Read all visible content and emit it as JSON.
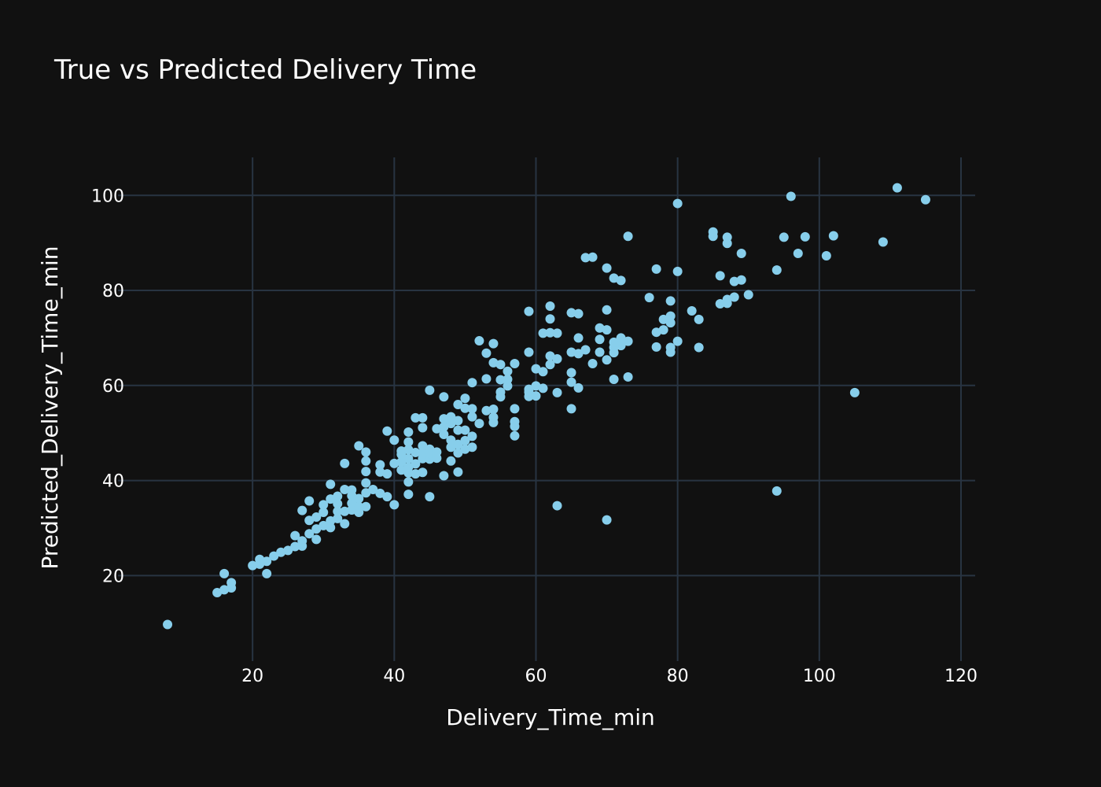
{
  "chart_data": {
    "type": "scatter",
    "title": "True vs Predicted Delivery Time",
    "xlabel": "Delivery_Time_min",
    "ylabel": "Predicted_Delivery_Time_min",
    "xlim": [
      1,
      122
    ],
    "ylim": [
      2,
      108
    ],
    "xticks": [
      20,
      40,
      60,
      80,
      100,
      120
    ],
    "yticks": [
      20,
      40,
      60,
      80,
      100
    ],
    "grid": true,
    "colors": {
      "background": "#111111",
      "grid": "#283442",
      "marker": "#87CEEB",
      "text": "#ffffff"
    },
    "points": [
      [
        8,
        9.7
      ],
      [
        15,
        16.4
      ],
      [
        16,
        20.4
      ],
      [
        16,
        17
      ],
      [
        17,
        18.5
      ],
      [
        17,
        17.4
      ],
      [
        20,
        22.1
      ],
      [
        21,
        23.4
      ],
      [
        21,
        22.4
      ],
      [
        22,
        23
      ],
      [
        22,
        20.4
      ],
      [
        23,
        24.1
      ],
      [
        24,
        24.9
      ],
      [
        25,
        25.3
      ],
      [
        26,
        26.1
      ],
      [
        26,
        28.4
      ],
      [
        27,
        26.2
      ],
      [
        27,
        27.3
      ],
      [
        27,
        33.7
      ],
      [
        28,
        31.6
      ],
      [
        28,
        28.8
      ],
      [
        28,
        35.7
      ],
      [
        29,
        27.6
      ],
      [
        29,
        29.8
      ],
      [
        29,
        32.3
      ],
      [
        30,
        30.5
      ],
      [
        30,
        33.3
      ],
      [
        30,
        34.9
      ],
      [
        31,
        30.1
      ],
      [
        31,
        31.5
      ],
      [
        31,
        36.1
      ],
      [
        31,
        39.2
      ],
      [
        32,
        32
      ],
      [
        32,
        33.5
      ],
      [
        32,
        35.1
      ],
      [
        32,
        36.7
      ],
      [
        33,
        30.9
      ],
      [
        33,
        33.5
      ],
      [
        33,
        38.1
      ],
      [
        33,
        43.6
      ],
      [
        34,
        33.8
      ],
      [
        34,
        35.2
      ],
      [
        34,
        36.8
      ],
      [
        34,
        38
      ],
      [
        35,
        33.3
      ],
      [
        35,
        34.5
      ],
      [
        35,
        36.2
      ],
      [
        35,
        47.3
      ],
      [
        36,
        34.5
      ],
      [
        36,
        37.4
      ],
      [
        36,
        39.5
      ],
      [
        36,
        41.9
      ],
      [
        36,
        44.1
      ],
      [
        36,
        46
      ],
      [
        37,
        38.1
      ],
      [
        38,
        37.3
      ],
      [
        38,
        41.8
      ],
      [
        38,
        43.3
      ],
      [
        39,
        36.6
      ],
      [
        39,
        41.4
      ],
      [
        39,
        50.4
      ],
      [
        40,
        34.9
      ],
      [
        40,
        43.6
      ],
      [
        40,
        48.5
      ],
      [
        41,
        42.2
      ],
      [
        41,
        43.9
      ],
      [
        41,
        45.5
      ],
      [
        41,
        46.2
      ],
      [
        42,
        37.1
      ],
      [
        42,
        39.7
      ],
      [
        42,
        41.6
      ],
      [
        42,
        42.8
      ],
      [
        42,
        44.6
      ],
      [
        42,
        46.5
      ],
      [
        42,
        48.1
      ],
      [
        42,
        50.2
      ],
      [
        43,
        41.4
      ],
      [
        43,
        43.5
      ],
      [
        43,
        45.9
      ],
      [
        43,
        53.2
      ],
      [
        44,
        41.7
      ],
      [
        44,
        44.6
      ],
      [
        44,
        45.8
      ],
      [
        44,
        47.3
      ],
      [
        44,
        51.1
      ],
      [
        44,
        53.2
      ],
      [
        45,
        36.6
      ],
      [
        45,
        44.5
      ],
      [
        45,
        45.7
      ],
      [
        45,
        46.6
      ],
      [
        45,
        59
      ],
      [
        46,
        44.7
      ],
      [
        46,
        46
      ],
      [
        46,
        50.9
      ],
      [
        47,
        41
      ],
      [
        47,
        49.7
      ],
      [
        47,
        51.3
      ],
      [
        47,
        53
      ],
      [
        47,
        57.6
      ],
      [
        48,
        44.1
      ],
      [
        48,
        47
      ],
      [
        48,
        48.5
      ],
      [
        48,
        52
      ],
      [
        48,
        53.4
      ],
      [
        49,
        41.8
      ],
      [
        49,
        45.8
      ],
      [
        49,
        47.6
      ],
      [
        49,
        50.6
      ],
      [
        49,
        52.6
      ],
      [
        49,
        56
      ],
      [
        50,
        46.6
      ],
      [
        50,
        48.4
      ],
      [
        50,
        50.6
      ],
      [
        50,
        55.2
      ],
      [
        50,
        57.3
      ],
      [
        51,
        47
      ],
      [
        51,
        49.3
      ],
      [
        51,
        53.4
      ],
      [
        51,
        55.1
      ],
      [
        51,
        60.6
      ],
      [
        52,
        52
      ],
      [
        52,
        69.4
      ],
      [
        53,
        54.7
      ],
      [
        53,
        61.4
      ],
      [
        53,
        66.8
      ],
      [
        54,
        52.2
      ],
      [
        54,
        53.3
      ],
      [
        54,
        55
      ],
      [
        54,
        64.8
      ],
      [
        54,
        68.8
      ],
      [
        55,
        57.6
      ],
      [
        55,
        58.6
      ],
      [
        55,
        61.2
      ],
      [
        55,
        64.4
      ],
      [
        56,
        59.9
      ],
      [
        56,
        61.3
      ],
      [
        56,
        63
      ],
      [
        57,
        49.4
      ],
      [
        57,
        51.4
      ],
      [
        57,
        52.4
      ],
      [
        57,
        55.1
      ],
      [
        57,
        64.6
      ],
      [
        59,
        57.7
      ],
      [
        59,
        58.6
      ],
      [
        59,
        59.2
      ],
      [
        59,
        67
      ],
      [
        59,
        75.6
      ],
      [
        60,
        57.8
      ],
      [
        60,
        59.9
      ],
      [
        60,
        63.5
      ],
      [
        61,
        59.4
      ],
      [
        61,
        62.9
      ],
      [
        61,
        71
      ],
      [
        62,
        64.4
      ],
      [
        62,
        66.2
      ],
      [
        62,
        71.1
      ],
      [
        62,
        74
      ],
      [
        62,
        76.7
      ],
      [
        63,
        34.7
      ],
      [
        63,
        58.5
      ],
      [
        63,
        65.6
      ],
      [
        63,
        71
      ],
      [
        65,
        55.1
      ],
      [
        65,
        60.7
      ],
      [
        65,
        62.7
      ],
      [
        65,
        67
      ],
      [
        65,
        75.3
      ],
      [
        66,
        59.5
      ],
      [
        66,
        66.7
      ],
      [
        66,
        70
      ],
      [
        66,
        75.1
      ],
      [
        67,
        67.5
      ],
      [
        67,
        86.9
      ],
      [
        68,
        64.6
      ],
      [
        68,
        87
      ],
      [
        69,
        67
      ],
      [
        69,
        69.7
      ],
      [
        69,
        72.1
      ],
      [
        70,
        31.7
      ],
      [
        70,
        65.4
      ],
      [
        70,
        71.7
      ],
      [
        70,
        75.9
      ],
      [
        70,
        84.7
      ],
      [
        71,
        61.3
      ],
      [
        71,
        66.9
      ],
      [
        71,
        68
      ],
      [
        71,
        69.1
      ],
      [
        71,
        82.6
      ],
      [
        72,
        68.4
      ],
      [
        72,
        69.3
      ],
      [
        72,
        70
      ],
      [
        72,
        82.1
      ],
      [
        73,
        61.8
      ],
      [
        73,
        69.3
      ],
      [
        73,
        91.4
      ],
      [
        76,
        78.5
      ],
      [
        77,
        68.1
      ],
      [
        77,
        71.2
      ],
      [
        77,
        84.5
      ],
      [
        78,
        71.7
      ],
      [
        78,
        73.9
      ],
      [
        79,
        67
      ],
      [
        79,
        68
      ],
      [
        79,
        73.2
      ],
      [
        79,
        74.6
      ],
      [
        79,
        77.8
      ],
      [
        80,
        69.3
      ],
      [
        80,
        84
      ],
      [
        80,
        98.3
      ],
      [
        82,
        75.7
      ],
      [
        83,
        68
      ],
      [
        83,
        73.9
      ],
      [
        85,
        91.4
      ],
      [
        85,
        92.3
      ],
      [
        86,
        77.2
      ],
      [
        86,
        83.1
      ],
      [
        87,
        77.3
      ],
      [
        87,
        78.1
      ],
      [
        87,
        89.9
      ],
      [
        87,
        91.2
      ],
      [
        88,
        78.6
      ],
      [
        88,
        81.9
      ],
      [
        89,
        82.2
      ],
      [
        89,
        87.8
      ],
      [
        90,
        79.1
      ],
      [
        94,
        37.8
      ],
      [
        94,
        84.3
      ],
      [
        95,
        91.2
      ],
      [
        96,
        99.8
      ],
      [
        97,
        87.8
      ],
      [
        98,
        91.3
      ],
      [
        101,
        87.3
      ],
      [
        102,
        91.5
      ],
      [
        105,
        58.5
      ],
      [
        109,
        90.2
      ],
      [
        111,
        101.6
      ],
      [
        115,
        99.1
      ]
    ]
  }
}
